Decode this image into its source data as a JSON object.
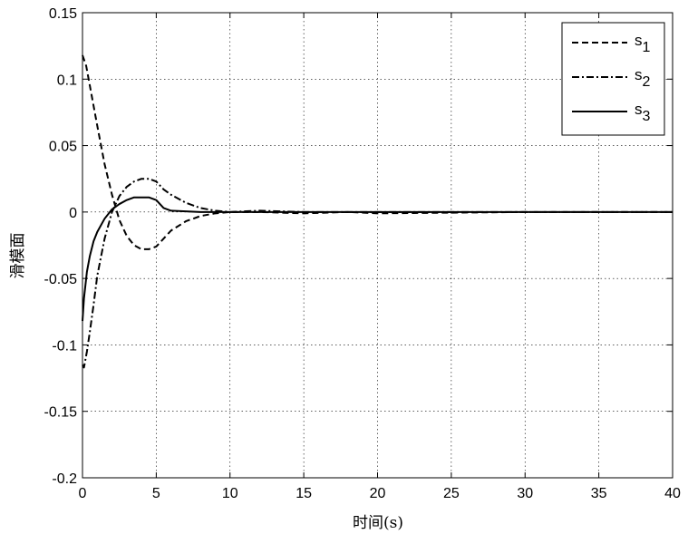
{
  "chart_data": {
    "type": "line",
    "xlabel": "时间(s)",
    "ylabel": "滑模面",
    "xlim": [
      0,
      40
    ],
    "ylim": [
      -0.2,
      0.15
    ],
    "xticks": [
      0,
      5,
      10,
      15,
      20,
      25,
      30,
      35,
      40
    ],
    "yticks": [
      -0.2,
      -0.15,
      -0.1,
      -0.05,
      0,
      0.05,
      0.1,
      0.15
    ],
    "xtick_labels": [
      "0",
      "5",
      "10",
      "15",
      "20",
      "25",
      "30",
      "35",
      "40"
    ],
    "ytick_labels": [
      "-0.2",
      "-0.15",
      "-0.1",
      "-0.05",
      "0",
      "0.05",
      "0.1",
      "0.15"
    ],
    "grid": true,
    "legend_position": "top-right",
    "series": [
      {
        "name": "s",
        "subscript": "1",
        "style": "dashed",
        "color": "#000000",
        "x": [
          0,
          0.25,
          0.5,
          1,
          1.5,
          2,
          2.5,
          3,
          3.5,
          4,
          4.5,
          5,
          5.5,
          6,
          7,
          8,
          9,
          10,
          12,
          15,
          18,
          20,
          25,
          30,
          40
        ],
        "y": [
          0.118,
          0.11,
          0.095,
          0.065,
          0.036,
          0.013,
          -0.006,
          -0.018,
          -0.025,
          -0.028,
          -0.028,
          -0.026,
          -0.02,
          -0.014,
          -0.007,
          -0.003,
          -0.001,
          0,
          0,
          -0.001,
          0,
          -0.001,
          -0.0005,
          0,
          0
        ]
      },
      {
        "name": "s",
        "subscript": "2",
        "style": "dashdot",
        "color": "#000000",
        "x": [
          0,
          0.1,
          0.3,
          0.5,
          0.75,
          1,
          1.5,
          2,
          2.5,
          3,
          3.5,
          4,
          4.5,
          5,
          5.5,
          6,
          7,
          8,
          9,
          10,
          12,
          15,
          18,
          20,
          25,
          30,
          40
        ],
        "y": [
          -0.115,
          -0.117,
          -0.105,
          -0.09,
          -0.07,
          -0.048,
          -0.02,
          0.0,
          0.012,
          0.019,
          0.023,
          0.025,
          0.025,
          0.023,
          0.017,
          0.013,
          0.007,
          0.003,
          0.001,
          0.0,
          0.001,
          0.0,
          0.0,
          0.0,
          0.0,
          0.0,
          0.0
        ]
      },
      {
        "name": "s",
        "subscript": "3",
        "style": "solid",
        "color": "#000000",
        "x": [
          0,
          0.1,
          0.3,
          0.5,
          0.75,
          1,
          1.5,
          2,
          2.5,
          3,
          3.5,
          4,
          4.5,
          5,
          5.5,
          6,
          7,
          8,
          9,
          10,
          12,
          15,
          20,
          30,
          40
        ],
        "y": [
          -0.082,
          -0.065,
          -0.045,
          -0.033,
          -0.022,
          -0.015,
          -0.005,
          0.002,
          0.006,
          0.009,
          0.011,
          0.011,
          0.011,
          0.009,
          0.003,
          0.001,
          0.0005,
          0,
          0,
          0,
          0,
          0,
          0,
          0,
          0
        ]
      }
    ]
  }
}
